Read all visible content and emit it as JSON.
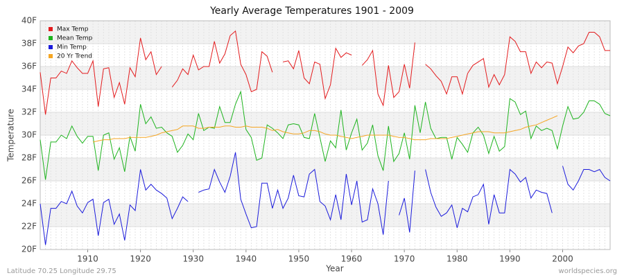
{
  "chart_data": {
    "type": "line",
    "title": "Yearly Average Temperatures 1901 - 2009",
    "x_label": "Year",
    "y_label": "Temperature",
    "note_left": "Latitude 70.25 Longitude 29.75",
    "note_right": "worldspecies.org",
    "legend": "top-left",
    "grid": true,
    "xlim": [
      1901,
      2009
    ],
    "xticks": [
      1910,
      1920,
      1930,
      1940,
      1950,
      1960,
      1970,
      1980,
      1990,
      2000
    ],
    "ylim": [
      20,
      40
    ],
    "yticks": [
      {
        "value": 20,
        "label": "20F"
      },
      {
        "value": 22,
        "label": "22F"
      },
      {
        "value": 24,
        "label": "24F"
      },
      {
        "value": 26,
        "label": "26F"
      },
      {
        "value": 28,
        "label": "28F"
      },
      {
        "value": 30,
        "label": "30F"
      },
      {
        "value": 32,
        "label": "32F"
      },
      {
        "value": 34,
        "label": "34F"
      },
      {
        "value": 36,
        "label": "36F"
      },
      {
        "value": 38,
        "label": "38F"
      },
      {
        "value": 40,
        "label": "40F"
      }
    ],
    "x": [
      1901,
      1902,
      1903,
      1904,
      1905,
      1906,
      1907,
      1908,
      1909,
      1910,
      1911,
      1912,
      1913,
      1914,
      1915,
      1916,
      1917,
      1918,
      1919,
      1920,
      1921,
      1922,
      1923,
      1924,
      1925,
      1926,
      1927,
      1928,
      1929,
      1930,
      1931,
      1932,
      1933,
      1934,
      1935,
      1936,
      1937,
      1938,
      1939,
      1940,
      1941,
      1942,
      1943,
      1944,
      1945,
      1946,
      1947,
      1948,
      1949,
      1950,
      1951,
      1952,
      1953,
      1954,
      1955,
      1956,
      1957,
      1958,
      1959,
      1960,
      1961,
      1962,
      1963,
      1964,
      1965,
      1966,
      1967,
      1968,
      1969,
      1970,
      1971,
      1972,
      1973,
      1974,
      1975,
      1976,
      1977,
      1978,
      1979,
      1980,
      1981,
      1982,
      1983,
      1984,
      1985,
      1986,
      1987,
      1988,
      1989,
      1990,
      1991,
      1992,
      1993,
      1994,
      1995,
      1996,
      1997,
      1998,
      1999,
      2000,
      2001,
      2002,
      2003,
      2004,
      2005,
      2006,
      2007,
      2008,
      2009
    ],
    "series": [
      {
        "name": "Max Temp",
        "color": "#e31a1c",
        "values": [
          35.5,
          31.8,
          35.0,
          35.0,
          35.6,
          35.4,
          36.5,
          35.9,
          35.4,
          35.4,
          36.5,
          32.5,
          35.8,
          35.9,
          33.3,
          34.6,
          32.7,
          35.9,
          35.1,
          38.5,
          36.6,
          37.3,
          35.3,
          36.0,
          null,
          34.2,
          34.8,
          35.8,
          35.3,
          37.0,
          35.7,
          36.0,
          36.0,
          38.2,
          36.3,
          37.1,
          38.7,
          39.1,
          36.2,
          35.3,
          33.8,
          34.0,
          37.3,
          36.9,
          35.5,
          null,
          36.4,
          36.5,
          35.8,
          37.4,
          35.0,
          34.5,
          36.4,
          36.2,
          33.2,
          34.4,
          37.6,
          36.8,
          37.2,
          37.0,
          null,
          36.1,
          36.6,
          37.4,
          33.6,
          32.6,
          36.1,
          33.3,
          33.8,
          36.2,
          34.1,
          38.1,
          null,
          36.2,
          35.8,
          35.2,
          34.7,
          33.6,
          35.1,
          35.1,
          33.6,
          35.4,
          36.1,
          36.4,
          36.7,
          34.2,
          35.3,
          34.4,
          35.3,
          38.6,
          38.2,
          37.3,
          37.3,
          35.4,
          36.4,
          35.9,
          36.4,
          36.3,
          34.5,
          36.0,
          37.7,
          37.2,
          37.8,
          38.0,
          39.0,
          39.0,
          38.6,
          37.4,
          37.4
        ]
      },
      {
        "name": "Mean Temp",
        "color": "#1db31d",
        "values": [
          29.6,
          26.1,
          29.4,
          29.4,
          30.0,
          29.7,
          30.8,
          29.9,
          29.3,
          29.9,
          29.9,
          26.9,
          30.0,
          30.2,
          27.9,
          28.9,
          26.8,
          29.9,
          28.6,
          32.7,
          31.0,
          31.6,
          30.6,
          30.7,
          30.2,
          29.9,
          28.5,
          29.1,
          30.1,
          29.6,
          31.9,
          30.4,
          30.7,
          30.6,
          32.5,
          31.1,
          31.1,
          32.7,
          33.8,
          30.5,
          29.8,
          27.8,
          28.0,
          30.9,
          30.6,
          30.2,
          29.7,
          30.9,
          31.0,
          30.9,
          29.8,
          29.7,
          31.9,
          29.8,
          27.7,
          29.5,
          28.9,
          32.2,
          28.7,
          30.2,
          31.4,
          28.7,
          29.3,
          30.9,
          28.2,
          26.9,
          30.8,
          27.7,
          28.4,
          30.2,
          27.9,
          32.6,
          30.2,
          32.9,
          30.6,
          29.7,
          29.8,
          29.8,
          27.9,
          29.8,
          29.2,
          28.5,
          30.2,
          30.7,
          30.0,
          28.4,
          29.9,
          28.6,
          29.0,
          33.2,
          32.9,
          31.8,
          32.1,
          29.7,
          30.8,
          30.4,
          30.6,
          30.4,
          28.8,
          30.8,
          32.5,
          31.4,
          31.5,
          32.0,
          33.0,
          33.0,
          32.7,
          31.9,
          31.7
        ]
      },
      {
        "name": "Min Temp",
        "color": "#1a1adb",
        "values": [
          24.0,
          20.4,
          23.6,
          23.6,
          24.2,
          24.0,
          25.1,
          23.8,
          23.2,
          24.1,
          24.4,
          21.2,
          24.1,
          24.4,
          22.2,
          23.1,
          20.8,
          23.9,
          23.4,
          27.0,
          25.2,
          25.7,
          25.2,
          24.9,
          24.5,
          22.7,
          23.6,
          24.6,
          24.2,
          null,
          25.0,
          25.2,
          25.3,
          27.0,
          25.9,
          25.0,
          26.4,
          28.5,
          24.4,
          23.1,
          21.9,
          22.0,
          25.8,
          25.8,
          23.6,
          25.2,
          23.6,
          24.5,
          26.5,
          24.7,
          24.6,
          26.6,
          27.0,
          24.2,
          23.8,
          22.6,
          24.8,
          22.6,
          26.6,
          23.9,
          26.0,
          22.4,
          22.6,
          25.3,
          24.0,
          21.3,
          26.0,
          null,
          23.0,
          24.5,
          21.5,
          26.9,
          null,
          27.0,
          25.0,
          23.7,
          22.9,
          23.2,
          23.9,
          21.9,
          23.6,
          23.3,
          24.6,
          24.8,
          25.7,
          22.2,
          24.8,
          23.2,
          23.2,
          27.0,
          26.6,
          25.9,
          26.3,
          24.5,
          25.2,
          25.0,
          24.9,
          23.2,
          null,
          27.3,
          25.7,
          25.2,
          26.0,
          27.0,
          27.0,
          26.8,
          27.0,
          26.3,
          26.0
        ]
      },
      {
        "name": "20 Yr Trend",
        "color": "#f5a623",
        "values": [
          null,
          null,
          null,
          null,
          null,
          null,
          null,
          null,
          null,
          null,
          29.4,
          29.5,
          29.6,
          29.6,
          29.7,
          29.7,
          29.7,
          29.8,
          29.8,
          29.8,
          29.8,
          29.9,
          30.0,
          30.2,
          30.3,
          30.4,
          30.5,
          30.8,
          30.8,
          30.8,
          30.6,
          30.6,
          30.7,
          30.7,
          30.7,
          30.8,
          30.8,
          30.7,
          30.7,
          30.8,
          30.7,
          30.7,
          30.7,
          30.6,
          30.4,
          30.5,
          30.3,
          30.2,
          30.1,
          30.1,
          30.2,
          30.4,
          30.4,
          30.3,
          30.1,
          30.0,
          30.0,
          29.9,
          29.8,
          29.7,
          29.8,
          29.9,
          30.0,
          30.0,
          30.0,
          30.0,
          30.0,
          29.9,
          29.8,
          29.8,
          29.7,
          29.6,
          29.6,
          29.6,
          29.7,
          29.7,
          29.7,
          29.7,
          29.8,
          29.9,
          30.0,
          30.1,
          30.2,
          30.3,
          30.3,
          30.3,
          30.2,
          30.2,
          30.2,
          30.3,
          30.4,
          30.5,
          30.7,
          30.8,
          30.9,
          31.1,
          31.3,
          31.5,
          31.7,
          null,
          null,
          null,
          null,
          null,
          null,
          null,
          null,
          null,
          null
        ]
      }
    ]
  }
}
